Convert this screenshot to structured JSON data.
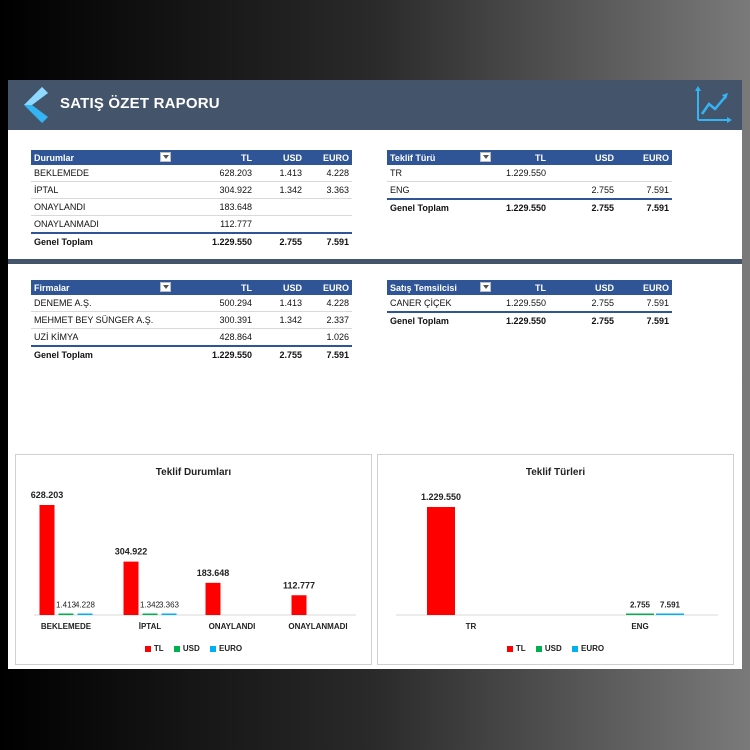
{
  "header": {
    "title": "SATIŞ ÖZET RAPORU"
  },
  "colors": {
    "header_bg": "#44546a",
    "table_header_bg": "#2f5597",
    "tl": "#ff0000",
    "usd": "#00b050",
    "euro": "#00b0f0",
    "back_chevron": "#33b5f5"
  },
  "icons": {
    "back": "chevron-left-icon",
    "report": "line-chart-icon",
    "filter": "dropdown-filter-icon"
  },
  "tables": {
    "durumlar": {
      "headers": [
        "Durumlar",
        "TL",
        "USD",
        "EURO"
      ],
      "rows": [
        [
          "BEKLEMEDE",
          "628.203",
          "1.413",
          "4.228"
        ],
        [
          "İPTAL",
          "304.922",
          "1.342",
          "3.363"
        ],
        [
          "ONAYLANDI",
          "183.648",
          "",
          ""
        ],
        [
          "ONAYLANMADI",
          "112.777",
          "",
          ""
        ]
      ],
      "total": [
        "Genel Toplam",
        "1.229.550",
        "2.755",
        "7.591"
      ]
    },
    "teklif_turu": {
      "headers": [
        "Teklif Türü",
        "TL",
        "USD",
        "EURO"
      ],
      "rows": [
        [
          "TR",
          "1.229.550",
          "",
          ""
        ],
        [
          "ENG",
          "",
          "2.755",
          "7.591"
        ]
      ],
      "total": [
        "Genel Toplam",
        "1.229.550",
        "2.755",
        "7.591"
      ]
    },
    "firmalar": {
      "headers": [
        "Firmalar",
        "TL",
        "USD",
        "EURO"
      ],
      "rows": [
        [
          "DENEME A.Ş.",
          "500.294",
          "1.413",
          "4.228"
        ],
        [
          "MEHMET BEY SÜNGER A.Ş.",
          "300.391",
          "1.342",
          "2.337"
        ],
        [
          "UZİ KİMYA",
          "428.864",
          "",
          "1.026"
        ]
      ],
      "total": [
        "Genel Toplam",
        "1.229.550",
        "2.755",
        "7.591"
      ]
    },
    "satis_temsilcisi": {
      "headers": [
        "Satış Temsilcisi",
        "TL",
        "USD",
        "EURO"
      ],
      "rows": [
        [
          "CANER ÇİÇEK",
          "1.229.550",
          "2.755",
          "7.591"
        ]
      ],
      "total": [
        "Genel Toplam",
        "1.229.550",
        "2.755",
        "7.591"
      ]
    }
  },
  "chart_data": [
    {
      "type": "bar",
      "title": "Teklif Durumları",
      "categories": [
        "BEKLEMEDE",
        "İPTAL",
        "ONAYLANDI",
        "ONAYLANMADI"
      ],
      "series": [
        {
          "name": "TL",
          "values": [
            628203,
            304922,
            183648,
            112777
          ],
          "labels": [
            "628.203",
            "304.922",
            "183.648",
            "112.777"
          ]
        },
        {
          "name": "USD",
          "values": [
            1413,
            1342,
            null,
            null
          ],
          "labels": [
            "1.413",
            "1.342",
            "",
            ""
          ]
        },
        {
          "name": "EURO",
          "values": [
            4228,
            3363,
            null,
            null
          ],
          "labels": [
            "4.228",
            "3.363",
            "",
            ""
          ]
        }
      ],
      "ylim": [
        0,
        628203
      ],
      "legend": "bottom",
      "grid": false
    },
    {
      "type": "bar",
      "title": "Teklif Türleri",
      "categories": [
        "TR",
        "ENG"
      ],
      "series": [
        {
          "name": "TL",
          "values": [
            1229550,
            null
          ],
          "labels": [
            "1.229.550",
            ""
          ]
        },
        {
          "name": "USD",
          "values": [
            null,
            2755
          ],
          "labels": [
            "",
            "2.755"
          ]
        },
        {
          "name": "EURO",
          "values": [
            null,
            7591
          ],
          "labels": [
            "",
            "7.591"
          ]
        }
      ],
      "ylim": [
        0,
        1229550
      ],
      "legend": "bottom",
      "grid": false
    }
  ]
}
